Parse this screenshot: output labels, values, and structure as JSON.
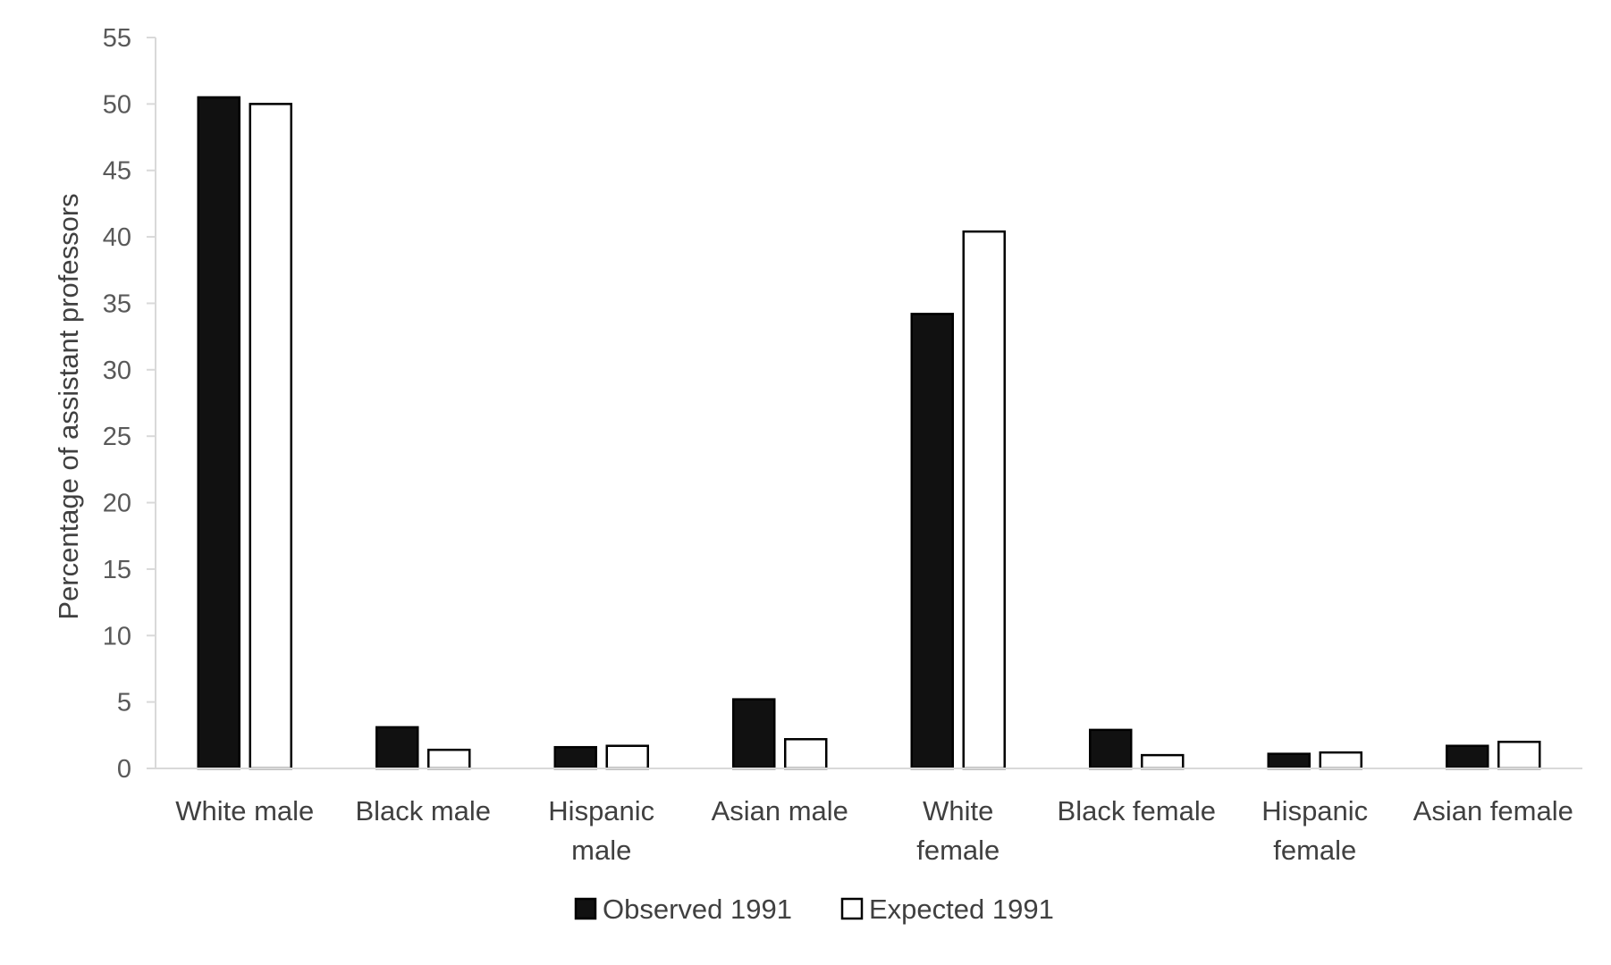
{
  "chart_data": {
    "type": "bar",
    "title": "",
    "xlabel": "",
    "ylabel": "Percentage of assistant professors",
    "ylim": [
      0,
      55
    ],
    "yticks": [
      0,
      5,
      10,
      15,
      20,
      25,
      30,
      35,
      40,
      45,
      50,
      55
    ],
    "grid": false,
    "legend_position": "bottom",
    "categories": [
      [
        "White male"
      ],
      [
        "Black male"
      ],
      [
        "Hispanic",
        "male"
      ],
      [
        "Asian male"
      ],
      [
        "White",
        "female"
      ],
      [
        "Black female"
      ],
      [
        "Hispanic",
        "female"
      ],
      [
        "Asian female"
      ]
    ],
    "series": [
      {
        "name": "Observed 1991",
        "fill": "#111111",
        "stroke": "#000000",
        "values": [
          50.5,
          3.1,
          1.6,
          5.2,
          34.2,
          2.9,
          1.1,
          1.7
        ]
      },
      {
        "name": "Expected 1991",
        "fill": "#ffffff",
        "stroke": "#000000",
        "values": [
          50.0,
          1.4,
          1.7,
          2.2,
          40.4,
          1.0,
          1.2,
          2.0
        ]
      }
    ]
  }
}
